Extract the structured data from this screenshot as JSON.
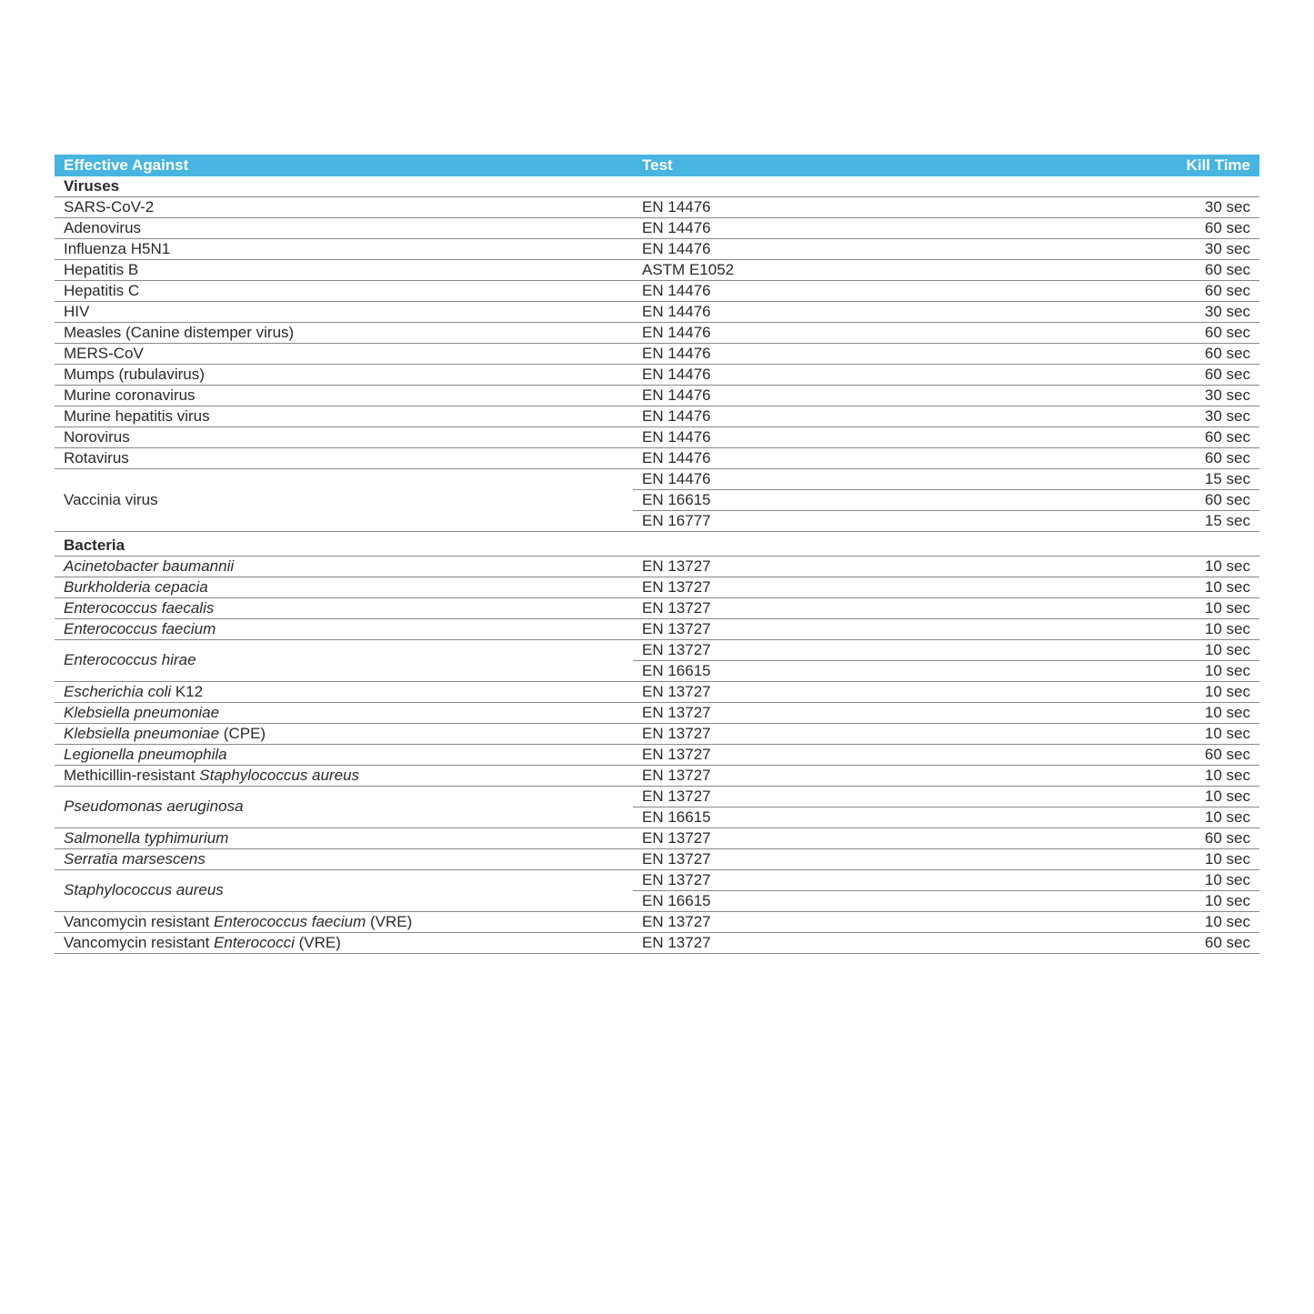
{
  "columns": {
    "effective": "Effective Against",
    "test": "Test",
    "kill": "Kill Time"
  },
  "colors": {
    "header_bg": "#48b4e0",
    "header_text": "#ffffff",
    "row_border": "#888888",
    "text": "#2a2a2a",
    "background": "#ffffff"
  },
  "typography": {
    "font_family": "Verdana, Geneva, sans-serif",
    "font_size_pt": 12
  },
  "sections": [
    {
      "title": "Viruses",
      "rows": [
        {
          "name_plain": "SARS-CoV-2",
          "tests": [
            {
              "test": "EN 14476",
              "kill": "30 sec"
            }
          ]
        },
        {
          "name_plain": "Adenovirus",
          "tests": [
            {
              "test": "EN 14476",
              "kill": "60 sec"
            }
          ]
        },
        {
          "name_plain": "Influenza H5N1",
          "tests": [
            {
              "test": "EN 14476",
              "kill": "30 sec"
            }
          ]
        },
        {
          "name_plain": "Hepatitis B",
          "tests": [
            {
              "test": "ASTM E1052",
              "kill": "60 sec"
            }
          ]
        },
        {
          "name_plain": "Hepatitis C",
          "tests": [
            {
              "test": "EN 14476",
              "kill": "60 sec"
            }
          ]
        },
        {
          "name_plain": "HIV",
          "tests": [
            {
              "test": "EN 14476",
              "kill": "30 sec"
            }
          ]
        },
        {
          "name_plain": "Measles (Canine distemper virus)",
          "tests": [
            {
              "test": "EN 14476",
              "kill": "60 sec"
            }
          ]
        },
        {
          "name_plain": "MERS-CoV",
          "tests": [
            {
              "test": "EN 14476",
              "kill": "60 sec"
            }
          ]
        },
        {
          "name_plain": "Mumps (rubulavirus)",
          "tests": [
            {
              "test": "EN 14476",
              "kill": "60 sec"
            }
          ]
        },
        {
          "name_plain": "Murine coronavirus",
          "tests": [
            {
              "test": "EN 14476",
              "kill": "30 sec"
            }
          ]
        },
        {
          "name_plain": "Murine hepatitis virus",
          "tests": [
            {
              "test": "EN 14476",
              "kill": "30 sec"
            }
          ]
        },
        {
          "name_plain": "Norovirus",
          "tests": [
            {
              "test": "EN 14476",
              "kill": "60 sec"
            }
          ]
        },
        {
          "name_plain": "Rotavirus",
          "tests": [
            {
              "test": "EN 14476",
              "kill": "60 sec"
            }
          ]
        },
        {
          "name_plain": "Vaccinia virus",
          "tests": [
            {
              "test": "EN 14476",
              "kill": "15 sec"
            },
            {
              "test": "EN 16615",
              "kill": "60 sec"
            },
            {
              "test": "EN 16777",
              "kill": "15 sec"
            }
          ]
        }
      ]
    },
    {
      "title": "Bacteria",
      "rows": [
        {
          "name_html": "<em class='sp'>Acinetobacter baumannii</em>",
          "tests": [
            {
              "test": "EN 13727",
              "kill": "10 sec"
            }
          ]
        },
        {
          "name_html": "<em class='sp'>Burkholderia cepacia</em>",
          "tests": [
            {
              "test": "EN 13727",
              "kill": "10 sec"
            }
          ]
        },
        {
          "name_html": "<em class='sp'>Enterococcus faecalis</em>",
          "tests": [
            {
              "test": "EN 13727",
              "kill": "10 sec"
            }
          ]
        },
        {
          "name_html": "<em class='sp'>Enterococcus faecium</em>",
          "tests": [
            {
              "test": "EN 13727",
              "kill": "10 sec"
            }
          ]
        },
        {
          "name_html": "<em class='sp'>Enterococcus hirae</em>",
          "tests": [
            {
              "test": "EN 13727",
              "kill": "10 sec"
            },
            {
              "test": "EN 16615",
              "kill": "10 sec"
            }
          ]
        },
        {
          "name_html": "<em class='sp'>Escherichia coli</em> K12",
          "tests": [
            {
              "test": "EN 13727",
              "kill": "10 sec"
            }
          ]
        },
        {
          "name_html": "<em class='sp'>Klebsiella pneumoniae</em>",
          "tests": [
            {
              "test": "EN 13727",
              "kill": "10 sec"
            }
          ]
        },
        {
          "name_html": "<em class='sp'>Klebsiella pneumoniae</em> (CPE)",
          "tests": [
            {
              "test": "EN 13727",
              "kill": "10 sec"
            }
          ]
        },
        {
          "name_html": "<em class='sp'>Legionella pneumophila</em>",
          "tests": [
            {
              "test": "EN 13727",
              "kill": "60 sec"
            }
          ]
        },
        {
          "name_html": "Methicillin-resistant <em class='sp'>Staphylococcus aureus</em>",
          "tests": [
            {
              "test": "EN 13727",
              "kill": "10 sec"
            }
          ]
        },
        {
          "name_html": "<em class='sp'>Pseudomonas aeruginosa</em>",
          "tests": [
            {
              "test": "EN 13727",
              "kill": "10 sec"
            },
            {
              "test": "EN 16615",
              "kill": "10 sec"
            }
          ]
        },
        {
          "name_html": "<em class='sp'>Salmonella typhimurium</em>",
          "tests": [
            {
              "test": "EN 13727",
              "kill": "60 sec"
            }
          ]
        },
        {
          "name_html": "<em class='sp'>Serratia marsescens</em>",
          "tests": [
            {
              "test": "EN 13727",
              "kill": "10 sec"
            }
          ]
        },
        {
          "name_html": "<em class='sp'>Staphylococcus aureus</em>",
          "tests": [
            {
              "test": "EN 13727",
              "kill": "10 sec"
            },
            {
              "test": "EN 16615",
              "kill": "10 sec"
            }
          ]
        },
        {
          "name_html": "Vancomycin resistant <em class='sp'>Enterococcus faecium</em> (VRE)",
          "tests": [
            {
              "test": "EN 13727",
              "kill": "10 sec"
            }
          ]
        },
        {
          "name_html": "Vancomycin resistant <em class='sp'>Enterococci</em> (VRE)",
          "tests": [
            {
              "test": "EN 13727",
              "kill": "60 sec"
            }
          ]
        }
      ]
    }
  ]
}
